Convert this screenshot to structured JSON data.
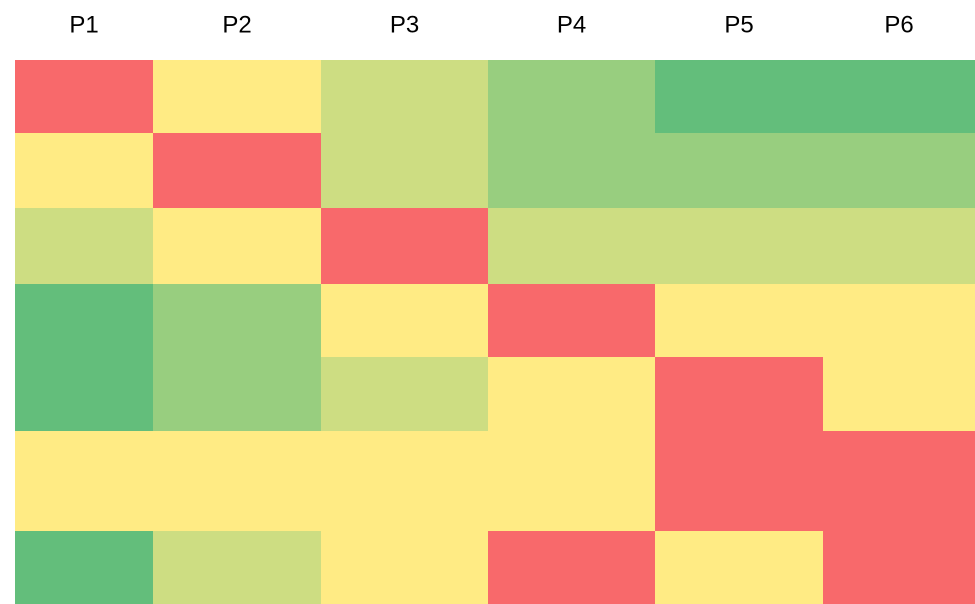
{
  "table": {
    "columns": [
      "P1",
      "P2",
      "P3",
      "P4",
      "P5",
      "P6"
    ],
    "rows": [
      [
        "#f8696b",
        "#ffeb84",
        "#cddd82",
        "#98ce7f",
        "#63be7b",
        "#63be7b"
      ],
      [
        "#ffeb84",
        "#f8696b",
        "#cddd82",
        "#98ce7f",
        "#98ce7f",
        "#98ce7f"
      ],
      [
        "#cddd82",
        "#ffeb84",
        "#f8696b",
        "#cddd82",
        "#cddd82",
        "#cddd82"
      ],
      [
        "#63be7b",
        "#98ce7f",
        "#ffeb84",
        "#f8696b",
        "#ffeb84",
        "#ffeb84"
      ],
      [
        "#63be7b",
        "#98ce7f",
        "#cddd82",
        "#ffeb84",
        "#f8696b",
        "#ffeb84"
      ],
      [
        "#ffeb84",
        "#ffeb84",
        "#ffeb84",
        "#ffeb84",
        "#f8696b",
        "#f8696b"
      ],
      [
        "#63be7b",
        "#cddd82",
        "#ffeb84",
        "#f8696b",
        "#ffeb84",
        "#f8696b"
      ]
    ]
  }
}
